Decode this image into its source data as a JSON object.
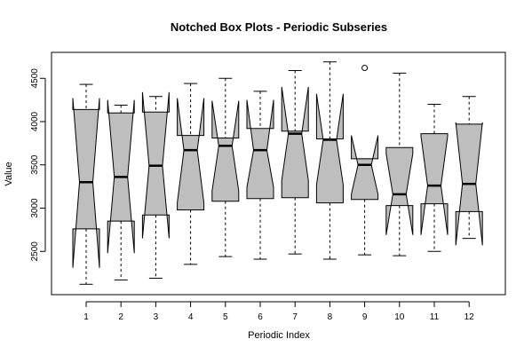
{
  "chart_data": {
    "type": "notched-boxplot",
    "title": "Notched Box Plots - Periodic Subseries",
    "xlabel": "Periodic Index",
    "ylabel": "Value",
    "ylim": [
      2000,
      4800
    ],
    "yticks": [
      2500,
      3000,
      3500,
      4000,
      4500
    ],
    "categories": [
      "1",
      "2",
      "3",
      "4",
      "5",
      "6",
      "7",
      "8",
      "9",
      "10",
      "11",
      "12"
    ],
    "boxes": [
      {
        "label": "1",
        "whisker_low": 2120,
        "q1": 2760,
        "median": 3300,
        "q3": 4140,
        "whisker_high": 4430,
        "notch_low": 2310,
        "notch_high": 4270,
        "outliers": []
      },
      {
        "label": "2",
        "whisker_low": 2170,
        "q1": 2850,
        "median": 3360,
        "q3": 4100,
        "whisker_high": 4190,
        "notch_low": 2480,
        "notch_high": 4250,
        "outliers": []
      },
      {
        "label": "3",
        "whisker_low": 2190,
        "q1": 2920,
        "median": 3490,
        "q3": 4110,
        "whisker_high": 4290,
        "notch_low": 2650,
        "notch_high": 4340,
        "outliers": []
      },
      {
        "label": "4",
        "whisker_low": 2350,
        "q1": 2980,
        "median": 3670,
        "q3": 3840,
        "whisker_high": 4440,
        "notch_low": 3060,
        "notch_high": 4270,
        "outliers": []
      },
      {
        "label": "5",
        "whisker_low": 2440,
        "q1": 3080,
        "median": 3720,
        "q3": 3810,
        "whisker_high": 4500,
        "notch_low": 3200,
        "notch_high": 4240,
        "outliers": []
      },
      {
        "label": "6",
        "whisker_low": 2410,
        "q1": 3110,
        "median": 3670,
        "q3": 3920,
        "whisker_high": 4350,
        "notch_low": 3240,
        "notch_high": 4250,
        "outliers": []
      },
      {
        "label": "7",
        "whisker_low": 2470,
        "q1": 3120,
        "median": 3860,
        "q3": 3890,
        "whisker_high": 4590,
        "notch_low": 3320,
        "notch_high": 4400,
        "outliers": []
      },
      {
        "label": "8",
        "whisker_low": 2410,
        "q1": 3060,
        "median": 3790,
        "q3": 3800,
        "whisker_high": 4690,
        "notch_low": 3270,
        "notch_high": 4320,
        "outliers": []
      },
      {
        "label": "9",
        "whisker_low": 2460,
        "q1": 3100,
        "median": 3500,
        "q3": 3570,
        "whisker_high": 3570,
        "notch_low": 3160,
        "notch_high": 3840,
        "outliers": [
          4620
        ]
      },
      {
        "label": "10",
        "whisker_low": 2450,
        "q1": 3030,
        "median": 3160,
        "q3": 3700,
        "whisker_high": 4560,
        "notch_low": 2690,
        "notch_high": 3630,
        "outliers": []
      },
      {
        "label": "11",
        "whisker_low": 2500,
        "q1": 3050,
        "median": 3260,
        "q3": 3860,
        "whisker_high": 4200,
        "notch_low": 2690,
        "notch_high": 3830,
        "outliers": []
      },
      {
        "label": "12",
        "whisker_low": 2650,
        "q1": 2960,
        "median": 3280,
        "q3": 3970,
        "whisker_high": 4290,
        "notch_low": 2570,
        "notch_high": 3990,
        "outliers": []
      }
    ],
    "colors": {
      "box_fill": "#bebebe",
      "stroke": "#000000"
    },
    "grid": false,
    "legend": "none"
  }
}
